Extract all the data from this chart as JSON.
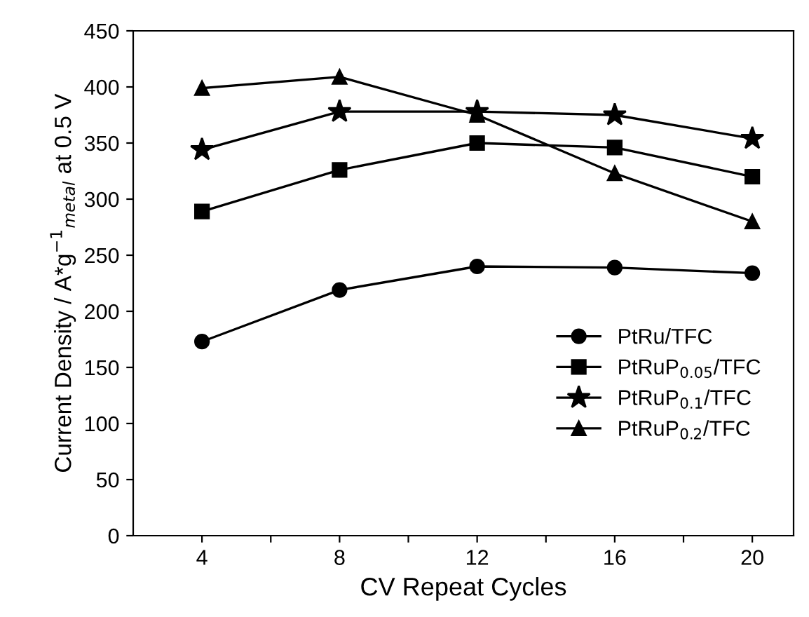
{
  "chart_data": {
    "type": "line",
    "xlabel": "CV Repeat Cycles",
    "ylabel": "Current Density / A*g$^{−1}$$_{metal}$ at 0.5 V",
    "x": [
      4,
      8,
      12,
      16,
      20
    ],
    "series": [
      {
        "name": "PtRu/TFC",
        "color": "#000000",
        "marker": "circle",
        "values": [
          173,
          219,
          240,
          239,
          234
        ]
      },
      {
        "name": "PtRuP$_{0.05}$/TFC",
        "color": "#000000",
        "marker": "square",
        "values": [
          289,
          326,
          350,
          346,
          320
        ]
      },
      {
        "name": "PtRuP$_{0.1}$/TFC",
        "color": "#000000",
        "marker": "star",
        "values": [
          344,
          378,
          378,
          375,
          354
        ]
      },
      {
        "name": "PtRuP$_{0.2}$/TFC",
        "color": "#000000",
        "marker": "triangle",
        "values": [
          399,
          409,
          375,
          323,
          280
        ]
      }
    ],
    "xlim": [
      2,
      21.2
    ],
    "ylim": [
      0,
      450
    ],
    "xticks": [
      4,
      {
        "value": 6,
        "label": null
      },
      8,
      {
        "value": 10,
        "label": null
      },
      12,
      {
        "value": 14,
        "label": null
      },
      16,
      {
        "value": 18,
        "label": null
      },
      20
    ],
    "yticks": [
      0,
      50,
      100,
      150,
      200,
      250,
      300,
      350,
      400,
      450
    ],
    "grid": false,
    "legend": "right",
    "line_style": "solid"
  }
}
